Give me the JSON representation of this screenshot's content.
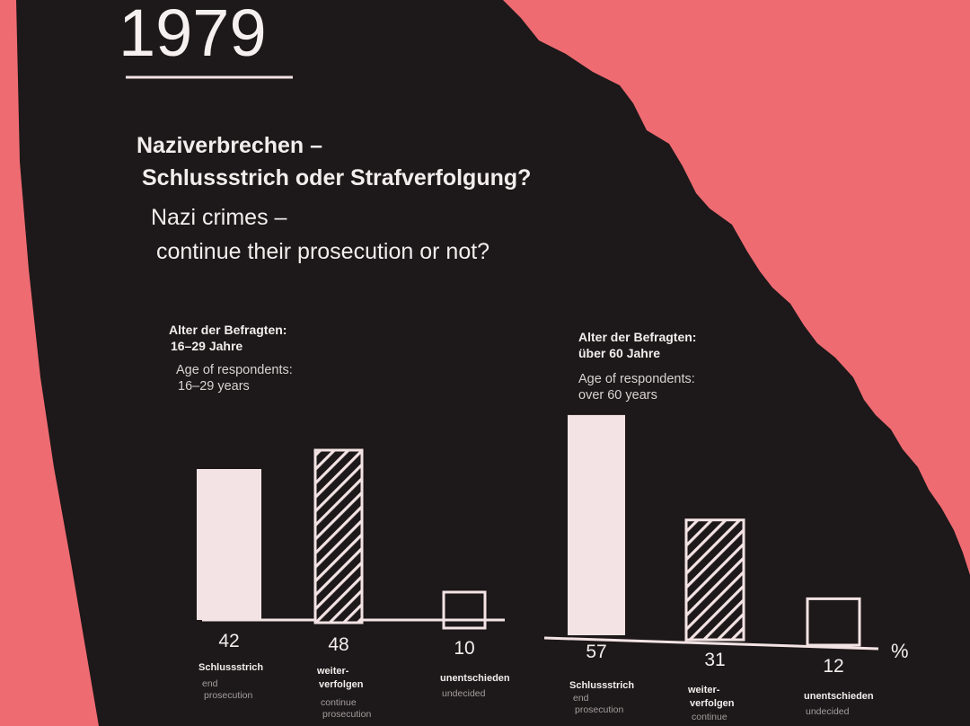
{
  "header": {
    "year": "1979",
    "title_de_line1": "Naziverbrechen –",
    "title_de_line2": "Schlussstrich oder Strafverfolgung?",
    "title_en_line1": "Nazi crimes –",
    "title_en_line2": "continue their prosecution or not?"
  },
  "chart_data": [
    {
      "type": "bar",
      "group_de_line1": "Alter der Befragten:",
      "group_de_line2": "16–29 Jahre",
      "group_en_line1": "Age of respondents:",
      "group_en_line2": "16–29 years",
      "unit": "",
      "ylim": [
        0,
        60
      ],
      "bars": [
        {
          "value": 42,
          "value_label": "42",
          "style": "solid",
          "label_de": [
            "Schlussstrich"
          ],
          "label_en": [
            "end",
            "prosecution"
          ]
        },
        {
          "value": 48,
          "value_label": "48",
          "style": "hatched",
          "label_de": [
            "weiter-",
            "verfolgen"
          ],
          "label_en": [
            "continue",
            "prosecution"
          ]
        },
        {
          "value": 10,
          "value_label": "10",
          "style": "outline",
          "label_de": [
            "unentschieden"
          ],
          "label_en": [
            "undecided"
          ]
        }
      ]
    },
    {
      "type": "bar",
      "group_de_line1": "Alter der Befragten:",
      "group_de_line2": "über 60 Jahre",
      "group_en_line1": "Age of respondents:",
      "group_en_line2": "over 60 years",
      "unit": "%",
      "ylim": [
        0,
        60
      ],
      "bars": [
        {
          "value": 57,
          "value_label": "57",
          "style": "solid",
          "label_de": [
            "Schlussstrich"
          ],
          "label_en": [
            "end",
            "prosecution"
          ]
        },
        {
          "value": 31,
          "value_label": "31",
          "style": "hatched",
          "label_de": [
            "weiter-",
            "verfolgen"
          ],
          "label_en": [
            "continue"
          ]
        },
        {
          "value": 12,
          "value_label": "12",
          "style": "outline",
          "label_de": [
            "unentschieden"
          ],
          "label_en": [
            "undecided"
          ]
        }
      ]
    }
  ]
}
